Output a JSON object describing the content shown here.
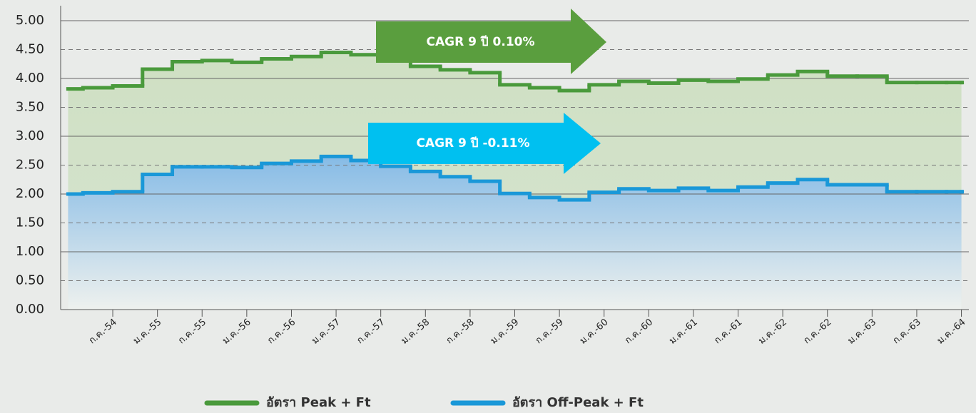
{
  "chart_data": {
    "type": "line",
    "step": true,
    "xlim": [
      -1,
      121
    ],
    "ylim": [
      0,
      5
    ],
    "yticks": [
      {
        "value": 0,
        "label": "0.00"
      },
      {
        "value": 0.5,
        "label": "0.50"
      },
      {
        "value": 1,
        "label": "1.00"
      },
      {
        "value": 1.5,
        "label": "1.50"
      },
      {
        "value": 2,
        "label": "2.00"
      },
      {
        "value": 2.5,
        "label": "2.50"
      },
      {
        "value": 3,
        "label": "3.00"
      },
      {
        "value": 3.5,
        "label": "3.50"
      },
      {
        "value": 4,
        "label": "4.00"
      },
      {
        "value": 4.5,
        "label": "4.50"
      },
      {
        "value": 5,
        "label": "5.00"
      }
    ],
    "xticks": [
      {
        "value": 6,
        "label": "ก.ค.-54"
      },
      {
        "value": 12,
        "label": "ม.ค.-55"
      },
      {
        "value": 18,
        "label": "ก.ค.-55"
      },
      {
        "value": 24,
        "label": "ม.ค.-56"
      },
      {
        "value": 30,
        "label": "ก.ค.-56"
      },
      {
        "value": 36,
        "label": "ม.ค.-57"
      },
      {
        "value": 42,
        "label": "ก.ค.-57"
      },
      {
        "value": 48,
        "label": "ม.ค.-58"
      },
      {
        "value": 54,
        "label": "ก.ค.-58"
      },
      {
        "value": 60,
        "label": "ม.ค.-59"
      },
      {
        "value": 66,
        "label": "ก.ค.-59"
      },
      {
        "value": 72,
        "label": "ม.ค.-60"
      },
      {
        "value": 78,
        "label": "ก.ค.-60"
      },
      {
        "value": 84,
        "label": "ม.ค.-61"
      },
      {
        "value": 90,
        "label": "ก.ค.-61"
      },
      {
        "value": 96,
        "label": "ม.ค.-62"
      },
      {
        "value": 102,
        "label": "ก.ค.-62"
      },
      {
        "value": 108,
        "label": "ม.ค.-63"
      },
      {
        "value": 114,
        "label": "ก.ค.-63"
      },
      {
        "value": 120,
        "label": "ม.ค.-64"
      }
    ],
    "x": [
      0,
      2,
      6,
      10,
      14,
      18,
      22,
      26,
      30,
      34,
      38,
      42,
      46,
      50,
      54,
      58,
      62,
      66,
      70,
      74,
      78,
      82,
      86,
      90,
      94,
      98,
      102,
      106,
      110,
      114,
      118,
      120
    ],
    "series": [
      {
        "name": "อัตรา Peak + Ft",
        "color": "#4a9a3c",
        "area": "#cfe0c3",
        "values": [
          3.82,
          3.84,
          3.87,
          4.16,
          4.29,
          4.31,
          4.28,
          4.34,
          4.38,
          4.45,
          4.41,
          4.31,
          4.21,
          4.15,
          4.1,
          3.89,
          3.84,
          3.79,
          3.89,
          3.95,
          3.92,
          3.97,
          3.95,
          3.99,
          4.06,
          4.12,
          4.04,
          4.04,
          3.93,
          3.93,
          3.93,
          3.93
        ]
      },
      {
        "name": "อัตรา Off-Peak + Ft",
        "color": "#1a98d8",
        "area": "#8bbde6",
        "values": [
          2.0,
          2.02,
          2.04,
          2.34,
          2.47,
          2.47,
          2.46,
          2.53,
          2.57,
          2.65,
          2.58,
          2.48,
          2.39,
          2.3,
          2.22,
          2.01,
          1.94,
          1.9,
          2.03,
          2.09,
          2.06,
          2.1,
          2.06,
          2.12,
          2.19,
          2.25,
          2.16,
          2.16,
          2.04,
          2.04,
          2.04,
          2.04
        ]
      }
    ],
    "annotations": [
      {
        "text": "CAGR 9 ปี 0.10%",
        "color": "#5a9e3e"
      },
      {
        "text": "CAGR 9 ปี -0.11%",
        "color": "#00c0f0"
      }
    ],
    "grid": true
  }
}
